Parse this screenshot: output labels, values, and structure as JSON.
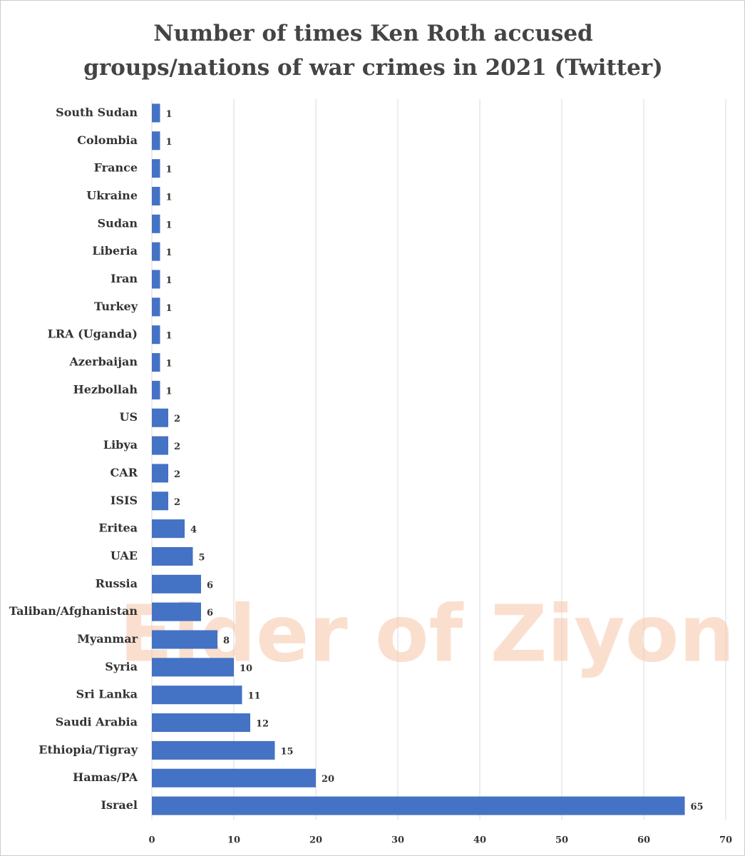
{
  "chart_data": {
    "type": "bar",
    "orientation": "horizontal",
    "title": "Number of times Ken Roth accused groups/nations of war crimes in 2021 (Twitter)",
    "watermark": "Elder of Ziyon",
    "categories": [
      "South Sudan",
      "Colombia",
      "France",
      "Ukraine",
      "Sudan",
      "Liberia",
      "Iran",
      "Turkey",
      "LRA (Uganda)",
      "Azerbaijan",
      "Hezbollah",
      "US",
      "Libya",
      "CAR",
      "ISIS",
      "Eritea",
      "UAE",
      "Russia",
      "Taliban/Afghanistan",
      "Myanmar",
      "Syria",
      "Sri Lanka",
      "Saudi Arabia",
      "Ethiopia/Tigray",
      "Hamas/PA",
      "Israel"
    ],
    "values": [
      1,
      1,
      1,
      1,
      1,
      1,
      1,
      1,
      1,
      1,
      1,
      2,
      2,
      2,
      2,
      4,
      5,
      6,
      6,
      8,
      10,
      11,
      12,
      15,
      20,
      65
    ],
    "color": "#4472c4",
    "xlim": [
      0,
      70
    ],
    "xticks": [
      0,
      10,
      20,
      30,
      40,
      50,
      60,
      70
    ],
    "grid": true
  }
}
